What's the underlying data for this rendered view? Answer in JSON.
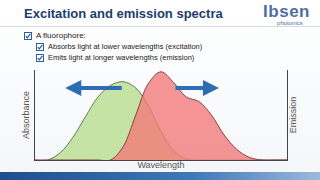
{
  "slide": {
    "title": "Excitation and emission spectra",
    "logo": {
      "name": "Ibsen",
      "tagline": "photonics"
    },
    "bullets": [
      {
        "text": "A fluorophore:",
        "sub": [
          "Absorbs light at lower wavelengths (excitation)",
          "Emits light at longer wavelengths (emission)"
        ]
      }
    ]
  },
  "chart_data": {
    "type": "area",
    "xlabel": "Wavelength",
    "ylabel": "Absorbance",
    "y2label": "Emission",
    "x": [
      0,
      0.5,
      1,
      1.5,
      2,
      2.5,
      3,
      3.5,
      4,
      4.5,
      5,
      5.5,
      6,
      6.5,
      7,
      7.5,
      8,
      8.5,
      9,
      9.5,
      10
    ],
    "series": [
      {
        "color": "#b8dd8f",
        "values": [
          0,
          0,
          0.8,
          2.5,
          4.8,
          7.0,
          8.3,
          8.7,
          8.0,
          6.0,
          3.2,
          1.0,
          0.1,
          0,
          0,
          0,
          0,
          0,
          0,
          0,
          0
        ]
      },
      {
        "color": "#f27a7a",
        "axis": "y2",
        "values": [
          0,
          0,
          0,
          0,
          0,
          0,
          0,
          1.5,
          5.0,
          8.5,
          9.8,
          8.6,
          7.0,
          6.5,
          5.0,
          2.8,
          1.2,
          0.3,
          0,
          0,
          0
        ]
      }
    ],
    "xlim": [
      0,
      10
    ],
    "ylim": [
      0,
      10
    ],
    "y2lim": [
      0,
      10
    ],
    "xticks": [],
    "yticks": [],
    "y2ticks": [],
    "tick_labels": false,
    "grid": false
  }
}
